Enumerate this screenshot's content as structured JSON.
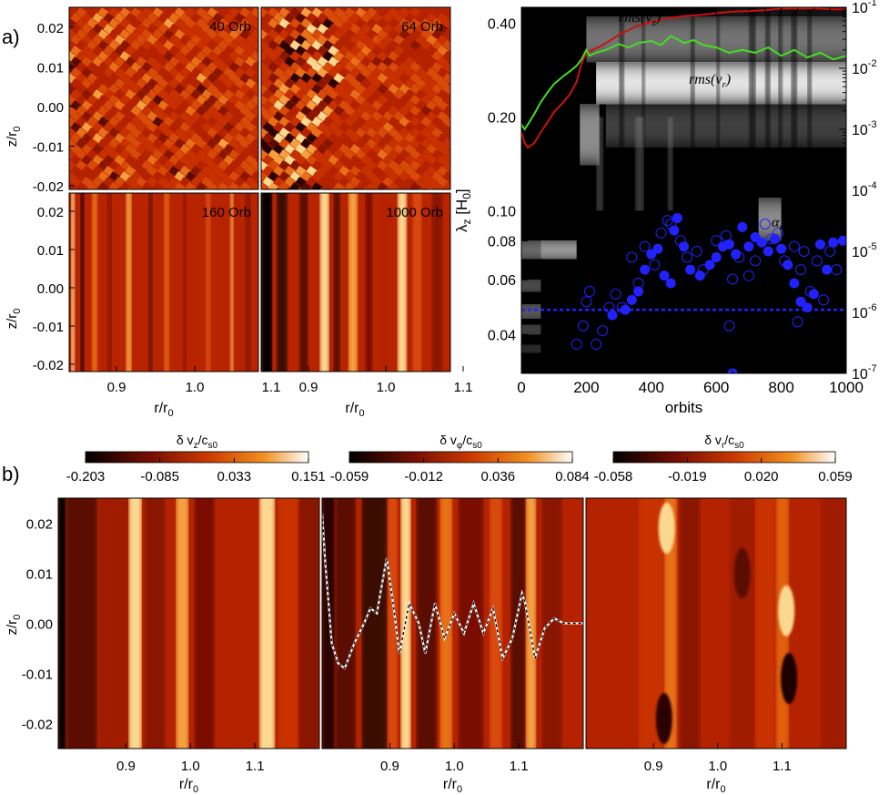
{
  "panel_labels": {
    "a": "a)",
    "b": "b)"
  },
  "panels_a": [
    {
      "title": "40 Orb",
      "pattern": "noise"
    },
    {
      "title": "64 Orb",
      "pattern": "noise"
    },
    {
      "title": "160 Orb",
      "pattern": "bands"
    },
    {
      "title": "1000 Orb",
      "pattern": "bands"
    }
  ],
  "axes_a": {
    "ylabel": "z/r",
    "ylabel_sub": "0",
    "xlabel": "r/r",
    "xlabel_sub": "0",
    "yticks": [
      "0.02",
      "0.01",
      "0.00",
      "-0.01",
      "-0.02"
    ],
    "xticks": [
      "0.9",
      "1.0",
      "1.1"
    ]
  },
  "chart_data": [
    {
      "type": "line",
      "panel": "a-right",
      "xlabel": "orbits",
      "ylabel": "λ",
      "ylabel_sub": "z",
      "ylabel_unit": "[H",
      "ylabel_unit_sub": "0",
      "ylabel_unit_close": "]",
      "xlim": [
        0,
        1000
      ],
      "ylim_left": [
        0.03,
        0.45
      ],
      "ylim_right": [
        1e-07,
        0.1
      ],
      "xticks": [
        "0",
        "200",
        "400",
        "600",
        "800",
        "1000"
      ],
      "yticks_left": [
        "0.40",
        "0.20",
        "0.10",
        "0.08",
        "0.06",
        "0.04"
      ],
      "yticks_left_values": [
        0.4,
        0.2,
        0.1,
        0.08,
        0.06,
        0.04
      ],
      "yticks_right_base": "10",
      "yticks_right_exp": [
        "-1",
        "-2",
        "-3",
        "-4",
        "-5",
        "-6",
        "-7"
      ],
      "series": [
        {
          "name": "rms(vz)",
          "label_main": "rms(v",
          "label_sub": "z",
          "label_close": ")",
          "color": "#cc1111",
          "x": [
            0,
            10,
            20,
            40,
            60,
            80,
            100,
            130,
            150,
            170,
            185,
            200,
            220,
            250,
            300,
            350,
            400,
            450,
            500,
            550,
            600,
            650,
            700,
            750,
            800,
            850,
            900,
            950,
            1000
          ],
          "y": [
            0.0009,
            0.0006,
            0.0005,
            0.0006,
            0.0009,
            0.0013,
            0.0019,
            0.0028,
            0.0038,
            0.006,
            0.012,
            0.018,
            0.02,
            0.024,
            0.035,
            0.048,
            0.058,
            0.066,
            0.072,
            0.075,
            0.08,
            0.085,
            0.087,
            0.09,
            0.095,
            0.095,
            0.096,
            0.093,
            0.092
          ]
        },
        {
          "name": "rms(vr)",
          "label_main": "rms(v",
          "label_sub": "r",
          "label_close": ")",
          "color": "#44dd22",
          "x": [
            0,
            10,
            20,
            40,
            60,
            80,
            100,
            130,
            150,
            170,
            185,
            200,
            210,
            230,
            260,
            300,
            330,
            360,
            400,
            430,
            460,
            480,
            500,
            530,
            560,
            600,
            640,
            680,
            720,
            760,
            800,
            840,
            880,
            920,
            960,
            1000
          ],
          "y": [
            0.0012,
            0.001,
            0.0012,
            0.0018,
            0.0028,
            0.004,
            0.0055,
            0.0075,
            0.009,
            0.011,
            0.014,
            0.02,
            0.016,
            0.018,
            0.02,
            0.025,
            0.022,
            0.026,
            0.028,
            0.024,
            0.034,
            0.03,
            0.026,
            0.029,
            0.024,
            0.022,
            0.018,
            0.02,
            0.018,
            0.022,
            0.016,
            0.02,
            0.015,
            0.018,
            0.014,
            0.016
          ]
        },
        {
          "name": "alpha_r",
          "label_main": "α",
          "label_sub": "r",
          "color": "#2222ff",
          "type": "scatter",
          "filled": [
            [
              280,
              9e-07
            ],
            [
              320,
              1.1e-06
            ],
            [
              340,
              1.6e-06
            ],
            [
              360,
              2.2e-06
            ],
            [
              380,
              5e-06
            ],
            [
              400,
              9e-06
            ],
            [
              420,
              1.1e-05
            ],
            [
              440,
              4e-06
            ],
            [
              460,
              3e-06
            ],
            [
              470,
              2.2e-05
            ],
            [
              480,
              3.5e-05
            ],
            [
              500,
              1.2e-05
            ],
            [
              520,
              5e-06
            ],
            [
              550,
              4e-06
            ],
            [
              580,
              6e-06
            ],
            [
              600,
              8e-06
            ],
            [
              620,
              1.2e-05
            ],
            [
              640,
              1.3e-05
            ],
            [
              660,
              9e-06
            ],
            [
              680,
              2.5e-05
            ],
            [
              700,
              1.2e-05
            ],
            [
              720,
              1.7e-05
            ],
            [
              740,
              1.4e-05
            ],
            [
              760,
              1e-05
            ],
            [
              780,
              1.6e-05
            ],
            [
              800,
              1.1e-05
            ],
            [
              820,
              6e-06
            ],
            [
              840,
              3e-06
            ],
            [
              860,
              1.5e-06
            ],
            [
              880,
              1.2e-06
            ],
            [
              900,
              2e-06
            ],
            [
              920,
              1.3e-05
            ],
            [
              940,
              5e-06
            ],
            [
              960,
              1.4e-05
            ],
            [
              990,
              1.5e-05
            ],
            [
              650,
              1e-07
            ]
          ],
          "open": [
            [
              170,
              3e-07
            ],
            [
              190,
              6e-07
            ],
            [
              200,
              1.5e-06
            ],
            [
              210,
              2.2e-06
            ],
            [
              230,
              3e-07
            ],
            [
              250,
              5e-07
            ],
            [
              270,
              1.2e-06
            ],
            [
              290,
              2e-06
            ],
            [
              310,
              1.2e-06
            ],
            [
              340,
              8e-06
            ],
            [
              360,
              3e-06
            ],
            [
              380,
              1.2e-05
            ],
            [
              410,
              6e-06
            ],
            [
              430,
              2e-05
            ],
            [
              450,
              3.2e-05
            ],
            [
              460,
              2.8e-05
            ],
            [
              490,
              1.5e-05
            ],
            [
              510,
              8e-06
            ],
            [
              540,
              1e-05
            ],
            [
              560,
              5e-06
            ],
            [
              600,
              1.5e-05
            ],
            [
              630,
              1.8e-05
            ],
            [
              650,
              3.5e-06
            ],
            [
              670,
              8e-06
            ],
            [
              700,
              4e-06
            ],
            [
              720,
              7e-06
            ],
            [
              750,
              2.8e-05
            ],
            [
              770,
              1.6e-05
            ],
            [
              790,
              2e-05
            ],
            [
              810,
              7e-06
            ],
            [
              840,
              1.2e-05
            ],
            [
              860,
              5e-06
            ],
            [
              870,
              1e-05
            ],
            [
              890,
              2.2e-06
            ],
            [
              910,
              7e-06
            ],
            [
              930,
              1.6e-06
            ],
            [
              950,
              1e-05
            ],
            [
              970,
              5e-06
            ],
            [
              640,
              6e-07
            ],
            [
              850,
              7e-07
            ]
          ]
        },
        {
          "name": "alpha_ref",
          "type": "dashed-hline",
          "color": "#2222ff",
          "y": 1.1e-06
        }
      ]
    },
    {
      "type": "heatmap",
      "panel": "b",
      "xlabel": "r/r",
      "xlabel_sub": "0",
      "ylabel": "z/r",
      "ylabel_sub": "0",
      "yticks": [
        "0.02",
        "0.01",
        "0.00",
        "-0.01",
        "-0.02"
      ],
      "xticks": [
        "0.9",
        "1.0",
        "1.1"
      ],
      "colorbars": [
        {
          "title": "δ v",
          "sub": "z",
          "tail": "/c",
          "tail_sub": "s0",
          "ticks": [
            "-0.203",
            "-0.085",
            "0.033",
            "0.151"
          ],
          "range": [
            -0.203,
            0.151
          ]
        },
        {
          "title": "δ v",
          "sub": "φ",
          "tail": "/c",
          "tail_sub": "s0",
          "ticks": [
            "-0.059",
            "-0.012",
            "0.036",
            "0.084"
          ],
          "range": [
            -0.059,
            0.084
          ]
        },
        {
          "title": "δ v",
          "sub": "r",
          "tail": "/c",
          "tail_sub": "s0",
          "ticks": [
            "-0.058",
            "-0.019",
            "0.020",
            "0.059"
          ],
          "range": [
            -0.058,
            0.059
          ]
        }
      ],
      "profile_line": {
        "x": [
          0.795,
          0.8,
          0.805,
          0.81,
          0.82,
          0.83,
          0.845,
          0.86,
          0.87,
          0.88,
          0.895,
          0.905,
          0.915,
          0.93,
          0.945,
          0.955,
          0.97,
          0.985,
          1.0,
          1.015,
          1.03,
          1.045,
          1.06,
          1.075,
          1.09,
          1.105,
          1.11,
          1.125,
          1.14,
          1.155,
          1.17,
          1.185,
          1.2
        ],
        "y": [
          0.022,
          0.012,
          0.004,
          -0.004,
          -0.008,
          -0.009,
          -0.004,
          0.0,
          0.003,
          0.002,
          0.013,
          0.004,
          -0.006,
          0.004,
          0.0,
          -0.006,
          0.004,
          -0.003,
          0.002,
          -0.002,
          0.004,
          -0.002,
          0.003,
          -0.007,
          -0.003,
          0.006,
          0.004,
          -0.007,
          -0.001,
          0.001,
          0.0,
          0.0,
          0.0
        ]
      }
    }
  ]
}
